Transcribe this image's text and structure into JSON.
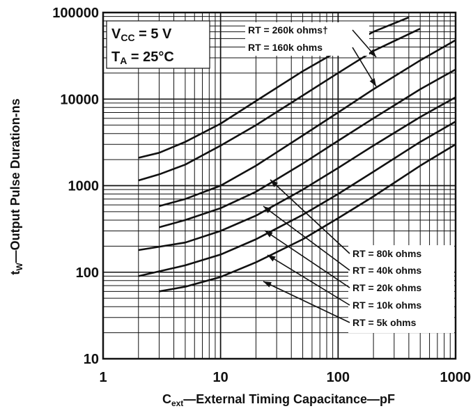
{
  "chart_data": {
    "type": "line",
    "title": "",
    "xlabel": {
      "main": "C",
      "sub": "ext",
      "rest": "—External Timing Capacitance—pF"
    },
    "ylabel": {
      "main": "t",
      "sub": "W",
      "rest": "—Output Pulse Duration-ns"
    },
    "xscale": "log",
    "yscale": "log",
    "xlim": [
      1,
      1000
    ],
    "ylim": [
      10,
      100000
    ],
    "grid": true,
    "x_ticks": [
      "1",
      "10",
      "100",
      "1000"
    ],
    "y_ticks": [
      "10",
      "100",
      "1000",
      "10000",
      "100000"
    ],
    "conditions": [
      {
        "main": "V",
        "sub": "CC",
        "rest": " = 5 V"
      },
      {
        "main": "T",
        "sub": "A",
        "rest": " = 25°C"
      }
    ],
    "series": [
      {
        "name": "RT = 260k ohms†",
        "points": [
          [
            2,
            2100
          ],
          [
            3,
            2400
          ],
          [
            5,
            3200
          ],
          [
            10,
            5200
          ],
          [
            20,
            9500
          ],
          [
            50,
            21000
          ],
          [
            100,
            36000
          ],
          [
            200,
            60000
          ],
          [
            400,
            88000
          ]
        ]
      },
      {
        "name": "RT = 160k ohms",
        "points": [
          [
            2,
            1150
          ],
          [
            3,
            1350
          ],
          [
            5,
            1750
          ],
          [
            10,
            2900
          ],
          [
            20,
            5000
          ],
          [
            50,
            11000
          ],
          [
            100,
            20000
          ],
          [
            200,
            36000
          ],
          [
            500,
            65000
          ]
        ]
      },
      {
        "name": "RT = 80k ohms",
        "points": [
          [
            3,
            580
          ],
          [
            5,
            700
          ],
          [
            10,
            1000
          ],
          [
            20,
            1700
          ],
          [
            50,
            3800
          ],
          [
            100,
            7000
          ],
          [
            200,
            13000
          ],
          [
            500,
            28000
          ],
          [
            1000,
            48000
          ]
        ]
      },
      {
        "name": "RT = 40k ohms",
        "points": [
          [
            3,
            330
          ],
          [
            5,
            400
          ],
          [
            10,
            550
          ],
          [
            20,
            850
          ],
          [
            50,
            1800
          ],
          [
            100,
            3300
          ],
          [
            200,
            6000
          ],
          [
            500,
            13000
          ],
          [
            1000,
            22000
          ]
        ]
      },
      {
        "name": "RT = 20k ohms",
        "points": [
          [
            2,
            180
          ],
          [
            5,
            220
          ],
          [
            10,
            300
          ],
          [
            20,
            450
          ],
          [
            50,
            900
          ],
          [
            100,
            1600
          ],
          [
            200,
            2900
          ],
          [
            500,
            6200
          ],
          [
            1000,
            10500
          ]
        ]
      },
      {
        "name": "RT = 10k ohms",
        "points": [
          [
            2,
            90
          ],
          [
            5,
            120
          ],
          [
            10,
            160
          ],
          [
            20,
            240
          ],
          [
            50,
            460
          ],
          [
            100,
            800
          ],
          [
            200,
            1450
          ],
          [
            500,
            3200
          ],
          [
            1000,
            5500
          ]
        ]
      },
      {
        "name": "RT =  5k ohms",
        "points": [
          [
            3,
            60
          ],
          [
            5,
            68
          ],
          [
            10,
            88
          ],
          [
            20,
            130
          ],
          [
            50,
            240
          ],
          [
            100,
            420
          ],
          [
            200,
            750
          ],
          [
            500,
            1700
          ],
          [
            1000,
            3000
          ]
        ]
      }
    ]
  }
}
